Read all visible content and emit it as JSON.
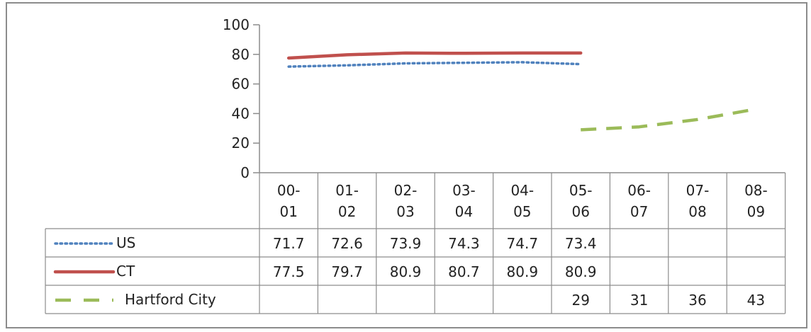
{
  "chart_data": {
    "type": "line",
    "categories": [
      [
        "00-",
        "01"
      ],
      [
        "01-",
        "02"
      ],
      [
        "02-",
        "03"
      ],
      [
        "03-",
        "04"
      ],
      [
        "04-",
        "05"
      ],
      [
        "05-",
        "06"
      ],
      [
        "06-",
        "07"
      ],
      [
        "07-",
        "08"
      ],
      [
        "08-",
        "09"
      ]
    ],
    "yticks": [
      "0",
      "20",
      "40",
      "60",
      "80",
      "100"
    ],
    "ylim": [
      0,
      100
    ],
    "grid": false,
    "data_table": true,
    "series": [
      {
        "name": "US",
        "values": [
          71.7,
          72.6,
          73.9,
          74.3,
          74.7,
          73.4,
          null,
          null,
          null
        ],
        "labels": [
          "71.7",
          "72.6",
          "73.9",
          "74.3",
          "74.7",
          "73.4",
          "",
          "",
          ""
        ],
        "color": "#4f81bd",
        "style": "dotted"
      },
      {
        "name": "CT",
        "values": [
          77.5,
          79.7,
          80.9,
          80.7,
          80.9,
          80.9,
          null,
          null,
          null
        ],
        "labels": [
          "77.5",
          "79.7",
          "80.9",
          "80.7",
          "80.9",
          "80.9",
          "",
          "",
          ""
        ],
        "color": "#c0504d",
        "style": "solid"
      },
      {
        "name": "Hartford City",
        "values": [
          null,
          null,
          null,
          null,
          null,
          29,
          31,
          36,
          43
        ],
        "labels": [
          "",
          "",
          "",
          "",
          "",
          "29",
          "31",
          "36",
          "43"
        ],
        "color": "#9bbb59",
        "style": "dashed"
      }
    ],
    "border_color": "#8c8c8c"
  }
}
